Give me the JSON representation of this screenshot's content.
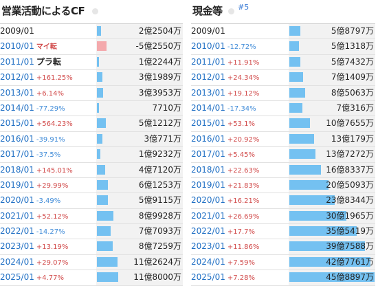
{
  "left": {
    "title": "営業活動によるCF",
    "rows": [
      {
        "date": "2009/01",
        "pct": "",
        "tag": "",
        "value": "2億2504万",
        "ratio": 0.046,
        "neg": false,
        "first": true
      },
      {
        "date": "2010/01",
        "pct": "",
        "tag": "マイ転",
        "value": "-5億2550万",
        "ratio": 0.108,
        "neg": true
      },
      {
        "date": "2011/01",
        "pct": "",
        "tag": "プラ転",
        "value": "1億2244万",
        "ratio": 0.025,
        "neg": false,
        "tagBig": true
      },
      {
        "date": "2012/01",
        "pct": "+161.25%",
        "tag": "",
        "value": "3億1989万",
        "ratio": 0.066,
        "neg": false
      },
      {
        "date": "2013/01",
        "pct": "+6.14%",
        "tag": "",
        "value": "3億3953万",
        "ratio": 0.07,
        "neg": false
      },
      {
        "date": "2014/01",
        "pct": "-77.29%",
        "tag": "",
        "value": "7710万",
        "ratio": 0.016,
        "neg": false
      },
      {
        "date": "2015/01",
        "pct": "+564.23%",
        "tag": "",
        "value": "5億1212万",
        "ratio": 0.105,
        "neg": false
      },
      {
        "date": "2016/01",
        "pct": "-39.91%",
        "tag": "",
        "value": "3億771万",
        "ratio": 0.063,
        "neg": false
      },
      {
        "date": "2017/01",
        "pct": "-37.5%",
        "tag": "",
        "value": "1億9232万",
        "ratio": 0.04,
        "neg": false
      },
      {
        "date": "2018/01",
        "pct": "+145.01%",
        "tag": "",
        "value": "4億7120万",
        "ratio": 0.097,
        "neg": false
      },
      {
        "date": "2019/01",
        "pct": "+29.99%",
        "tag": "",
        "value": "6億1253万",
        "ratio": 0.126,
        "neg": false
      },
      {
        "date": "2020/01",
        "pct": "-3.49%",
        "tag": "",
        "value": "5億9115万",
        "ratio": 0.122,
        "neg": false
      },
      {
        "date": "2021/01",
        "pct": "+52.12%",
        "tag": "",
        "value": "8億9928万",
        "ratio": 0.185,
        "neg": false
      },
      {
        "date": "2022/01",
        "pct": "-14.27%",
        "tag": "",
        "value": "7億7093万",
        "ratio": 0.159,
        "neg": false
      },
      {
        "date": "2023/01",
        "pct": "+13.19%",
        "tag": "",
        "value": "8億7259万",
        "ratio": 0.18,
        "neg": false
      },
      {
        "date": "2024/01",
        "pct": "+29.07%",
        "tag": "",
        "value": "11億2624万",
        "ratio": 0.232,
        "neg": false
      },
      {
        "date": "2025/01",
        "pct": "+4.77%",
        "tag": "",
        "value": "11億8000万",
        "ratio": 0.243,
        "neg": false
      }
    ]
  },
  "right": {
    "title": "現金等",
    "link": "#5",
    "rows": [
      {
        "date": "2009/01",
        "pct": "",
        "value": "5億8797万",
        "ratio": 0.131,
        "first": true
      },
      {
        "date": "2010/01",
        "pct": "-12.72%",
        "value": "5億1318万",
        "ratio": 0.114
      },
      {
        "date": "2011/01",
        "pct": "+11.91%",
        "value": "5億7432万",
        "ratio": 0.128
      },
      {
        "date": "2012/01",
        "pct": "+24.34%",
        "value": "7億1409万",
        "ratio": 0.159
      },
      {
        "date": "2013/01",
        "pct": "+19.12%",
        "value": "8億5063万",
        "ratio": 0.189
      },
      {
        "date": "2014/01",
        "pct": "-17.34%",
        "value": "7億316万",
        "ratio": 0.156
      },
      {
        "date": "2015/01",
        "pct": "+53.1%",
        "value": "10億7655万",
        "ratio": 0.239
      },
      {
        "date": "2016/01",
        "pct": "+20.92%",
        "value": "13億179万",
        "ratio": 0.289
      },
      {
        "date": "2017/01",
        "pct": "+5.45%",
        "value": "13億7272万",
        "ratio": 0.305
      },
      {
        "date": "2018/01",
        "pct": "+22.63%",
        "value": "16億8337万",
        "ratio": 0.374
      },
      {
        "date": "2019/01",
        "pct": "+21.83%",
        "value": "20億5093万",
        "ratio": 0.456
      },
      {
        "date": "2020/01",
        "pct": "+16.21%",
        "value": "23億8344万",
        "ratio": 0.53
      },
      {
        "date": "2021/01",
        "pct": "+26.69%",
        "value": "30億1965万",
        "ratio": 0.671
      },
      {
        "date": "2022/01",
        "pct": "+17.7%",
        "value": "35億5419万",
        "ratio": 0.79
      },
      {
        "date": "2023/01",
        "pct": "+11.86%",
        "value": "39億7588万",
        "ratio": 0.884
      },
      {
        "date": "2024/01",
        "pct": "+7.59%",
        "value": "42億7761万",
        "ratio": 0.951
      },
      {
        "date": "2025/01",
        "pct": "+7.28%",
        "value": "45億8897万",
        "ratio": 1.0
      }
    ]
  },
  "colors": {
    "positive_bar": "#74c1f1",
    "negative_bar": "#f4a9ac",
    "positive_pct": "#d14a4a",
    "negative_pct": "#3f8bd8",
    "date_link": "#1f6fc4"
  }
}
